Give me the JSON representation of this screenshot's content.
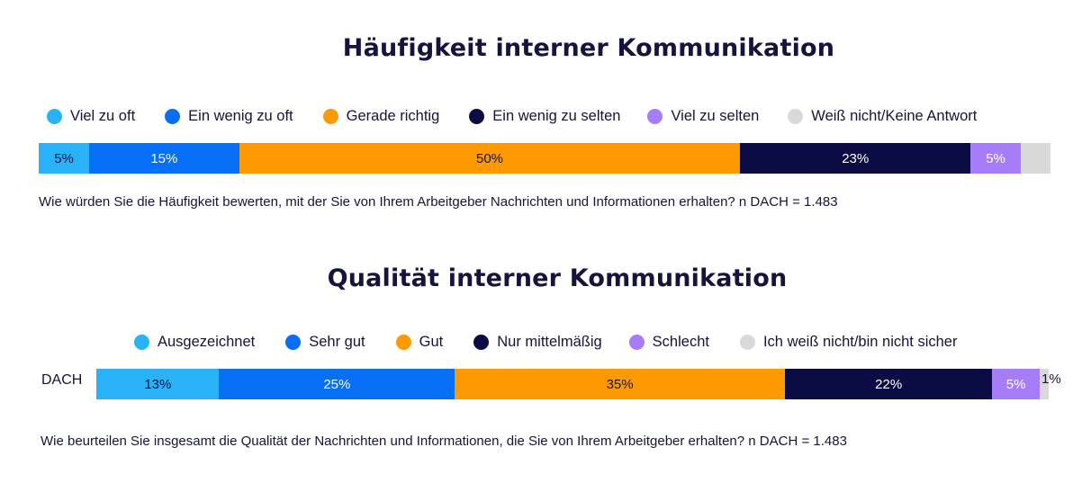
{
  "chart_data": [
    {
      "type": "bar",
      "orientation": "horizontal-stacked-100",
      "title": "Häufigkeit interner Kommunikation",
      "legend_position": "top",
      "series": [
        {
          "name": "Viel zu oft",
          "value": 5,
          "label": "5%",
          "color": "#29b2f7",
          "text_color": "#14143c"
        },
        {
          "name": "Ein wenig zu oft",
          "value": 15,
          "label": "15%",
          "color": "#066ef7",
          "text_color": "#ffffff"
        },
        {
          "name": "Gerade richtig",
          "value": 50,
          "label": "50%",
          "color": "#ff9900",
          "text_color": "#14143c"
        },
        {
          "name": "Ein wenig zu selten",
          "value": 23,
          "label": "23%",
          "color": "#0c0c45",
          "text_color": "#ffffff"
        },
        {
          "name": "Viel zu selten",
          "value": 5,
          "label": "5%",
          "color": "#a77cf8",
          "text_color": "#ffffff"
        },
        {
          "name": "Weiß nicht/Keine Antwort",
          "value": 3,
          "label": "",
          "color": "#d9d9d9",
          "text_color": "#14143c"
        }
      ],
      "footnote": "Wie würden Sie die Häufigkeit bewerten, mit der Sie von Ihrem Arbeitgeber Nachrichten und Informationen erhalten? n DACH = 1.483"
    },
    {
      "type": "bar",
      "orientation": "horizontal-stacked-100",
      "title": "Qualität interner Kommunikation",
      "legend_position": "top",
      "category": "DACH",
      "series": [
        {
          "name": "Ausgezeichnet",
          "value": 13,
          "label": "13%",
          "color": "#29b2f7",
          "text_color": "#14143c"
        },
        {
          "name": "Sehr gut",
          "value": 25,
          "label": "25%",
          "color": "#066ef7",
          "text_color": "#ffffff"
        },
        {
          "name": "Gut",
          "value": 35,
          "label": "35%",
          "color": "#ff9900",
          "text_color": "#14143c"
        },
        {
          "name": "Nur mittelmäßig",
          "value": 22,
          "label": "22%",
          "color": "#0c0c45",
          "text_color": "#ffffff"
        },
        {
          "name": "Schlecht",
          "value": 5,
          "label": "5%",
          "color": "#a77cf8",
          "text_color": "#ffffff"
        },
        {
          "name": "Ich weiß nicht/bin nicht sicher",
          "value": 1,
          "label": "1%",
          "color": "#d9d9d9",
          "text_color": "#14143c",
          "label_outside": true
        }
      ],
      "footnote": "Wie beurteilen Sie insgesamt die Qualität der Nachrichten und Informationen, die Sie von Ihrem Arbeitgeber erhalten? n DACH = 1.483"
    }
  ]
}
